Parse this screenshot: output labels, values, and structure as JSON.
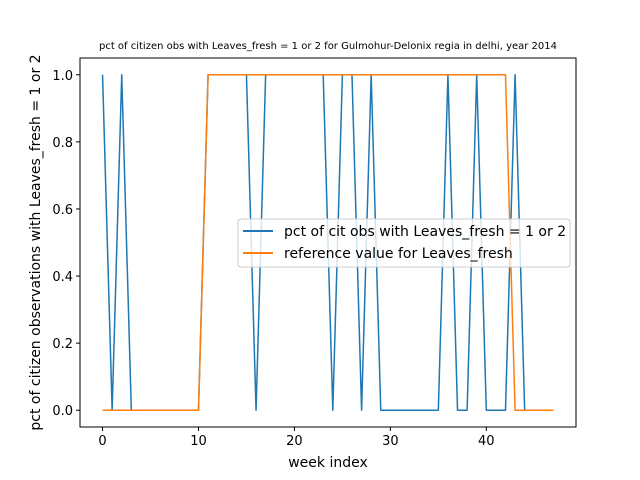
{
  "chart_data": {
    "type": "line",
    "title": "pct of citizen obs with Leaves_fresh = 1 or 2 for Gulmohur-Delonix regia in delhi, year 2014",
    "xlabel": "week index",
    "ylabel": "pct of citizen observations with Leaves_fresh = 1 or 2",
    "xlim": [
      -2.35,
      49.35
    ],
    "ylim": [
      -0.05,
      1.05
    ],
    "xticks": [
      0,
      10,
      20,
      30,
      40
    ],
    "yticks": [
      0.0,
      0.2,
      0.4,
      0.6,
      0.8,
      1.0
    ],
    "xtick_labels": [
      "0",
      "10",
      "20",
      "30",
      "40"
    ],
    "ytick_labels": [
      "0.0",
      "0.2",
      "0.4",
      "0.6",
      "0.8",
      "1.0"
    ],
    "grid": false,
    "legend_position": "center-right",
    "series": [
      {
        "name": "pct of cit obs with Leaves_fresh = 1 or 2",
        "color": "#1f77b4",
        "x": [
          0,
          1,
          2,
          3,
          4,
          5,
          6,
          7,
          8,
          9,
          10,
          11,
          12,
          13,
          14,
          15,
          16,
          17,
          18,
          19,
          20,
          21,
          22,
          23,
          24,
          25,
          26,
          27,
          28,
          29,
          30,
          31,
          32,
          33,
          34,
          35,
          36,
          37,
          38,
          39,
          40,
          41,
          42,
          43,
          44,
          45,
          46,
          47
        ],
        "y": [
          1,
          0,
          1,
          0,
          0,
          0,
          0,
          0,
          0,
          0,
          0,
          1,
          1,
          1,
          1,
          1,
          0,
          1,
          1,
          1,
          1,
          1,
          1,
          1,
          0,
          1,
          1,
          0,
          1,
          0,
          0,
          0,
          0,
          0,
          0,
          0,
          1,
          0,
          0,
          1,
          0,
          0,
          0,
          1,
          0,
          0,
          0,
          0
        ]
      },
      {
        "name": "reference value for Leaves_fresh",
        "color": "#ff7f0e",
        "x": [
          0,
          1,
          2,
          3,
          4,
          5,
          6,
          7,
          8,
          9,
          10,
          11,
          12,
          13,
          14,
          15,
          16,
          17,
          18,
          19,
          20,
          21,
          22,
          23,
          24,
          25,
          26,
          27,
          28,
          29,
          30,
          31,
          32,
          33,
          34,
          35,
          36,
          37,
          38,
          39,
          40,
          41,
          42,
          43,
          44,
          45,
          46,
          47
        ],
        "y": [
          0,
          0,
          0,
          0,
          0,
          0,
          0,
          0,
          0,
          0,
          0,
          1,
          1,
          1,
          1,
          1,
          1,
          1,
          1,
          1,
          1,
          1,
          1,
          1,
          1,
          1,
          1,
          1,
          1,
          1,
          1,
          1,
          1,
          1,
          1,
          1,
          1,
          1,
          1,
          1,
          1,
          1,
          1,
          0,
          0,
          0,
          0,
          0
        ]
      }
    ]
  }
}
